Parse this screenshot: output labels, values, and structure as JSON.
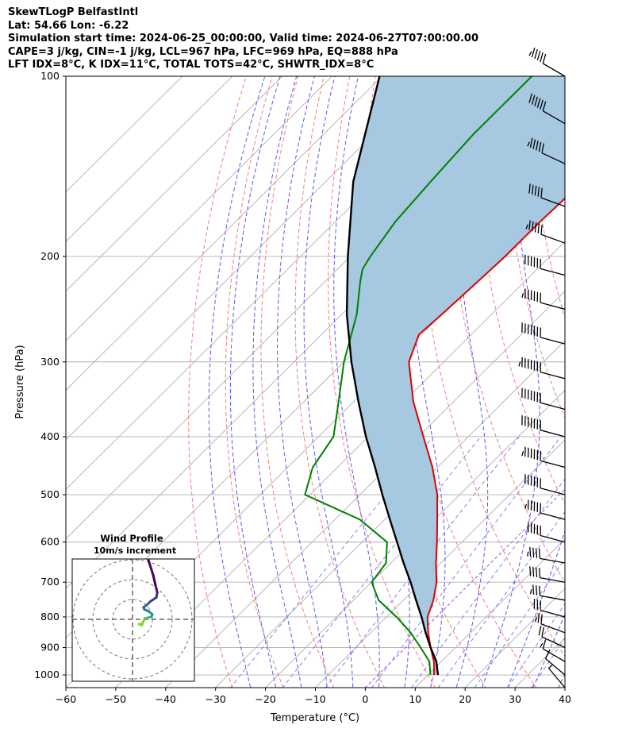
{
  "header": {
    "line1": "SkewTLogP BelfastIntl",
    "line2": "Lat: 54.66   Lon: -6.22",
    "line3": "Simulation start time: 2024-06-25_00:00:00, Valid time: 2024-06-27T07:00:00.00",
    "line4": "CAPE=3 j/kg, CIN=-1 j/kg, LCL=967 hPa, LFC=969 hPa, EQ=888 hPa",
    "line5": "LFT IDX=8°C, K IDX=11°C, TOTAL TOTS=42°C, SHWTR_IDX=8°C"
  },
  "colors": {
    "temperature": "#e00000",
    "dewpoint": "#008000",
    "parcel": "#000000",
    "cape_fill": "#a6c8e0",
    "dry_adiabat": "#f08080",
    "moist_adiabat": "#5a5ae8",
    "mixing_ratio": "#8080ee",
    "isotherm": "#b0b0b0",
    "zero_isotherm": "#9a50c8"
  },
  "chart_data": {
    "type": "line",
    "xlabel": "Temperature (°C)",
    "ylabel": "Pressure (hPa)",
    "xlim": [
      -60,
      40
    ],
    "ylim": [
      1050,
      100
    ],
    "yscale": "log",
    "grid": true,
    "x_ticks": [
      "−60",
      "−50",
      "−40",
      "−30",
      "−20",
      "−10",
      "0",
      "10",
      "20",
      "30",
      "40"
    ],
    "y_ticks": [
      "100",
      "200",
      "300",
      "400",
      "500",
      "600",
      "700",
      "800",
      "900",
      "1000"
    ],
    "series": [
      {
        "key": "temperature",
        "pressure": [
          1000,
          950,
          900,
          850,
          800,
          750,
          700,
          650,
          600,
          550,
          500,
          450,
          400,
          350,
          300,
          270,
          250,
          225,
          200,
          175,
          150,
          140,
          130,
          120,
          110,
          100
        ],
        "values": [
          11.2,
          8.5,
          5.0,
          1.5,
          -1.8,
          -4.0,
          -7.0,
          -11.0,
          -15.0,
          -19.5,
          -24.5,
          -31.0,
          -39.0,
          -48.0,
          -57.0,
          -60.5,
          -60.0,
          -59.5,
          -59.0,
          -59.0,
          -58.5,
          -57.0,
          -56.0,
          -56.0,
          -55.5,
          -55.0
        ]
      },
      {
        "key": "dewpoint",
        "pressure": [
          1000,
          950,
          900,
          850,
          800,
          750,
          700,
          650,
          600,
          550,
          500,
          450,
          400,
          350,
          300,
          250,
          220,
          210,
          200,
          175,
          150,
          125,
          100
        ],
        "values": [
          10.5,
          7.6,
          3.0,
          -2.0,
          -8.0,
          -15.0,
          -20.0,
          -21.0,
          -25.0,
          -35.0,
          -51.0,
          -55.0,
          -57.0,
          -63.0,
          -70.0,
          -77.0,
          -83.0,
          -85.0,
          -86.0,
          -88.0,
          -89.0,
          -90.0,
          -90.0
        ]
      },
      {
        "key": "parcel",
        "pressure": [
          1000,
          950,
          900,
          850,
          800,
          750,
          700,
          650,
          600,
          550,
          500,
          450,
          400,
          350,
          300,
          250,
          200,
          150,
          100
        ],
        "values": [
          12.0,
          9.0,
          5.0,
          1.0,
          -3.0,
          -7.5,
          -12.2,
          -17.5,
          -23.0,
          -29.0,
          -35.5,
          -42.5,
          -50.5,
          -59.0,
          -68.5,
          -79.0,
          -90.5,
          -104.5,
          -120.5
        ]
      }
    ],
    "wind_barbs": {
      "pressure": [
        100,
        120,
        140,
        165,
        190,
        215,
        245,
        280,
        320,
        360,
        400,
        450,
        500,
        550,
        600,
        650,
        700,
        750,
        800,
        850,
        900,
        950,
        1000,
        1050
      ],
      "speed_kt": [
        55,
        60,
        55,
        50,
        55,
        60,
        65,
        70,
        75,
        70,
        70,
        65,
        60,
        55,
        50,
        45,
        40,
        35,
        30,
        25,
        20,
        15,
        10,
        5
      ],
      "direction_deg": [
        300,
        300,
        295,
        290,
        290,
        285,
        285,
        285,
        285,
        285,
        285,
        285,
        285,
        285,
        285,
        280,
        280,
        280,
        285,
        290,
        295,
        300,
        310,
        320
      ]
    },
    "hodograph": {
      "title": "Wind Profile",
      "subtitle": "10m/s increment",
      "u": [
        4.0,
        3.2,
        4.6,
        6.2,
        8.4,
        9.5,
        10.0,
        8.2,
        6.0,
        5.5,
        7.5,
        9.0,
        12.0,
        12.5,
        11.5,
        10.5,
        8.0
      ],
      "v": [
        -2.0,
        -2.5,
        -3.0,
        0.5,
        1.0,
        1.2,
        2.5,
        4.0,
        5.0,
        6.0,
        7.5,
        9.0,
        11.0,
        13.5,
        17.5,
        22.0,
        30.0
      ]
    }
  }
}
